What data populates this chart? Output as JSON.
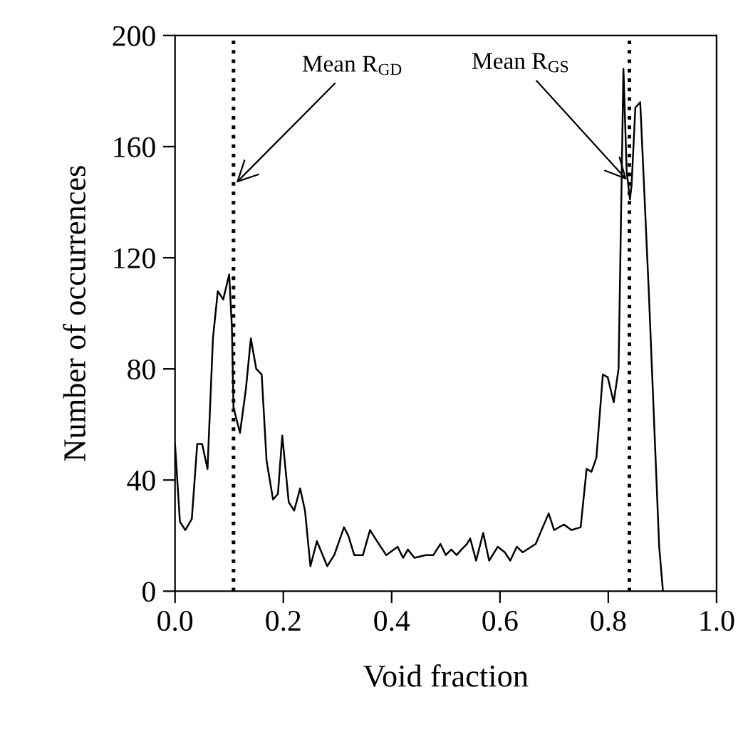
{
  "chart_data": {
    "type": "line",
    "xlabel": "Void fraction",
    "ylabel": "Number of occurrences",
    "x": [
      0,
      0.009,
      0.019,
      0.031,
      0.041,
      0.05,
      0.06,
      0.07,
      0.079,
      0.089,
      0.1,
      0.105,
      0.108,
      0.12,
      0.131,
      0.14,
      0.15,
      0.16,
      0.169,
      0.181,
      0.19,
      0.198,
      0.21,
      0.22,
      0.231,
      0.24,
      0.25,
      0.262,
      0.281,
      0.294,
      0.312,
      0.32,
      0.331,
      0.347,
      0.36,
      0.373,
      0.39,
      0.411,
      0.421,
      0.43,
      0.442,
      0.463,
      0.477,
      0.49,
      0.5,
      0.51,
      0.52,
      0.529,
      0.539,
      0.545,
      0.556,
      0.569,
      0.58,
      0.596,
      0.609,
      0.619,
      0.631,
      0.642,
      0.666,
      0.679,
      0.69,
      0.7,
      0.718,
      0.732,
      0.749,
      0.76,
      0.769,
      0.778,
      0.79,
      0.799,
      0.81,
      0.819,
      0.828,
      0.834,
      0.84,
      0.843,
      0.85,
      0.859,
      0.866,
      0.875,
      0.894,
      0.901
    ],
    "series": [
      {
        "color": "#000000",
        "values": [
          53,
          25,
          22,
          26,
          53,
          53,
          44,
          91,
          108,
          105,
          114,
          95,
          66,
          57,
          73,
          91,
          80,
          78,
          47,
          33,
          35,
          56,
          32,
          29,
          37,
          29,
          9,
          18,
          9,
          13,
          23,
          20,
          13,
          13,
          22,
          18,
          13,
          16,
          12,
          15,
          12,
          13,
          13,
          17,
          13,
          15,
          13,
          15,
          17,
          19,
          11,
          21,
          11,
          16,
          14,
          11,
          16,
          14,
          17,
          23,
          28,
          22,
          24,
          22,
          23,
          44,
          43,
          48,
          78,
          77,
          68,
          80,
          188,
          151,
          141,
          146,
          174,
          176,
          146,
          107,
          16,
          0
        ]
      }
    ],
    "xlim": [
      0,
      1
    ],
    "ylim": [
      0,
      200
    ],
    "xticks": [
      {
        "value": 0,
        "label": "0.0"
      },
      {
        "value": 0.2,
        "label": "0.2"
      },
      {
        "value": 0.4,
        "label": "0.4"
      },
      {
        "value": 0.6,
        "label": "0.6"
      },
      {
        "value": 0.8,
        "label": "0.8"
      },
      {
        "value": 1,
        "label": "1.0"
      }
    ],
    "yticks": [
      0,
      40,
      80,
      120,
      160,
      200
    ],
    "ref_lines": [
      {
        "axis": "x",
        "value": 0.108,
        "line_style": "dotted",
        "color": "#000000"
      },
      {
        "axis": "x",
        "value": 0.839,
        "line_style": "dotted",
        "color": "#000000"
      }
    ],
    "annotations": [
      {
        "text": "Mean R$_{GD}$",
        "x": 0.108,
        "y": 146
      },
      {
        "text": "Mean R$_{GS}$",
        "x": 0.839,
        "y": 147
      }
    ],
    "grid": false,
    "line_style": "solid"
  }
}
